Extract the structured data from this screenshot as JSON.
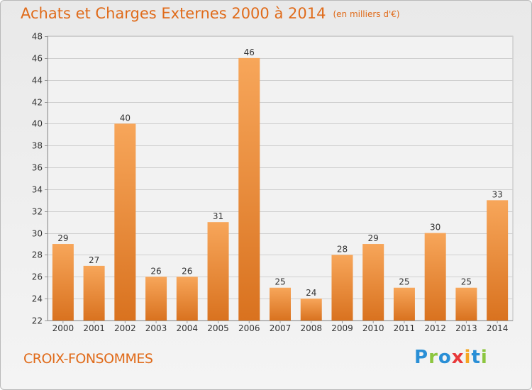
{
  "header": {
    "title": "Achats et Charges Externes 2000 à 2014",
    "unit": "(en milliers d'€)"
  },
  "footer": {
    "commune": "CROIX-FONSOMMES",
    "logo_letters": [
      {
        "ch": "P",
        "color": "#2a8fd6"
      },
      {
        "ch": "r",
        "color": "#8cc63f"
      },
      {
        "ch": "o",
        "color": "#2a8fd6"
      },
      {
        "ch": "x",
        "color": "#e8393a"
      },
      {
        "ch": "i",
        "color": "#f5a623"
      },
      {
        "ch": "t",
        "color": "#2a8fd6"
      },
      {
        "ch": "i",
        "color": "#8cc63f"
      }
    ]
  },
  "colors": {
    "accent": "#e06b1a",
    "bar_top": "#f7a65a",
    "bar_bottom": "#d9721f",
    "grid": "#cfcfcf"
  },
  "chart_data": {
    "type": "bar",
    "categories": [
      "2000",
      "2001",
      "2002",
      "2003",
      "2004",
      "2005",
      "2006",
      "2007",
      "2008",
      "2009",
      "2010",
      "2011",
      "2012",
      "2013",
      "2014"
    ],
    "values": [
      29,
      27,
      40,
      26,
      26,
      31,
      46,
      25,
      24,
      28,
      29,
      25,
      30,
      25,
      33
    ],
    "ylim": [
      22,
      48
    ],
    "yticks": [
      22,
      24,
      26,
      28,
      30,
      32,
      34,
      36,
      38,
      40,
      42,
      44,
      46,
      48
    ],
    "grid": true,
    "data_labels": true
  }
}
